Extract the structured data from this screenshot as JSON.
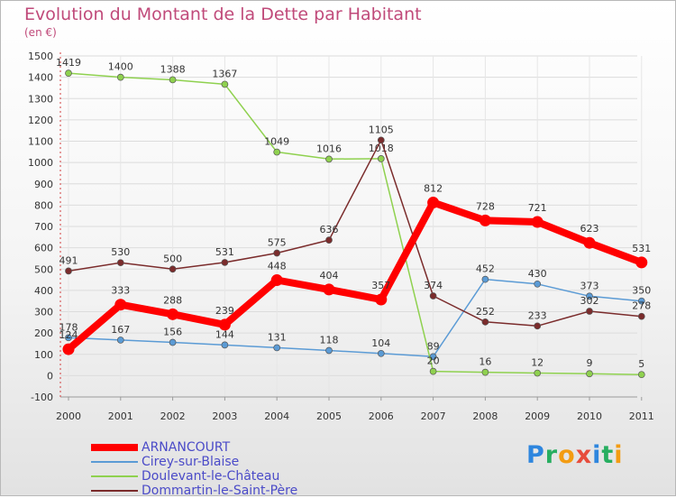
{
  "chart_data": {
    "type": "line",
    "title": "Evolution du Montant de la Dette par Habitant",
    "subtitle": "(en €)",
    "xlabel": "",
    "ylabel": "",
    "x": [
      "2000",
      "2001",
      "2002",
      "2003",
      "2004",
      "2005",
      "2006",
      "2007",
      "2008",
      "2009",
      "2010",
      "2011"
    ],
    "ylim": [
      -100,
      1500
    ],
    "yticks": [
      -100,
      0,
      100,
      200,
      300,
      400,
      500,
      600,
      700,
      800,
      900,
      1000,
      1100,
      1200,
      1300,
      1400,
      1500
    ],
    "grid": true,
    "legend_position": "bottom-left",
    "series": [
      {
        "name": "ARNANCOURT",
        "color": "#ff0000",
        "emphasis": true,
        "values": [
          124,
          333,
          288,
          239,
          448,
          404,
          357,
          812,
          728,
          721,
          623,
          531
        ]
      },
      {
        "name": "Cirey-sur-Blaise",
        "color": "#5b9bd5",
        "values": [
          178,
          167,
          156,
          144,
          131,
          118,
          104,
          89,
          452,
          430,
          373,
          350
        ]
      },
      {
        "name": "Doulevant-le-Château",
        "color": "#8fd14f",
        "values": [
          1419,
          1400,
          1388,
          1367,
          1049,
          1016,
          1018,
          20,
          16,
          12,
          9,
          5
        ]
      },
      {
        "name": "Dommartin-le-Saint-Père",
        "color": "#7b2c2c",
        "values": [
          491,
          530,
          500,
          531,
          575,
          636,
          1105,
          374,
          252,
          233,
          302,
          278
        ]
      }
    ]
  },
  "logo": {
    "letters": [
      {
        "ch": "P",
        "color": "#2e86de"
      },
      {
        "ch": "r",
        "color": "#27ae60"
      },
      {
        "ch": "o",
        "color": "#f39c12"
      },
      {
        "ch": "x",
        "color": "#e74c3c"
      },
      {
        "ch": "i",
        "color": "#2e86de"
      },
      {
        "ch": "t",
        "color": "#27ae60"
      },
      {
        "ch": "i",
        "color": "#f39c12"
      }
    ]
  }
}
